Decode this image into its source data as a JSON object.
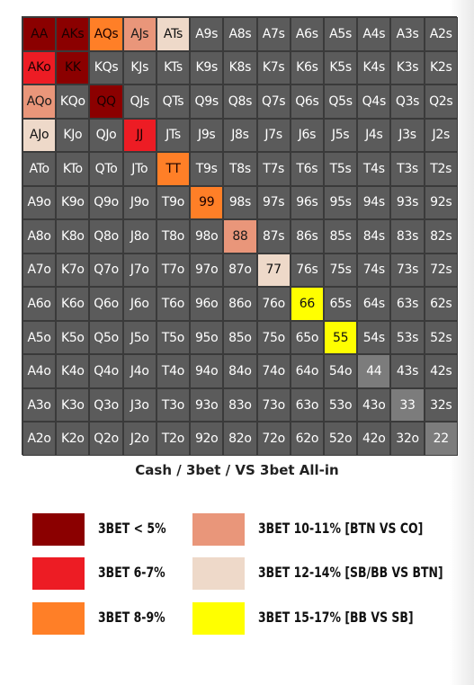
{
  "chart_data": {
    "type": "heatmap",
    "title": "Cash / 3bet / VS 3bet All-in",
    "grid": [
      [
        "AA",
        "AKs",
        "AQs",
        "AJs",
        "ATs",
        "A9s",
        "A8s",
        "A7s",
        "A6s",
        "A5s",
        "A4s",
        "A3s",
        "A2s"
      ],
      [
        "AKo",
        "KK",
        "KQs",
        "KJs",
        "KTs",
        "K9s",
        "K8s",
        "K7s",
        "K6s",
        "K5s",
        "K4s",
        "K3s",
        "K2s"
      ],
      [
        "AQo",
        "KQo",
        "QQ",
        "QJs",
        "QTs",
        "Q9s",
        "Q8s",
        "Q7s",
        "Q6s",
        "Q5s",
        "Q4s",
        "Q3s",
        "Q2s"
      ],
      [
        "AJo",
        "KJo",
        "QJo",
        "JJ",
        "JTs",
        "J9s",
        "J8s",
        "J7s",
        "J6s",
        "J5s",
        "J4s",
        "J3s",
        "J2s"
      ],
      [
        "ATo",
        "KTo",
        "QTo",
        "JTo",
        "TT",
        "T9s",
        "T8s",
        "T7s",
        "T6s",
        "T5s",
        "T4s",
        "T3s",
        "T2s"
      ],
      [
        "A9o",
        "K9o",
        "Q9o",
        "J9o",
        "T9o",
        "99",
        "98s",
        "97s",
        "96s",
        "95s",
        "94s",
        "93s",
        "92s"
      ],
      [
        "A8o",
        "K8o",
        "Q8o",
        "J8o",
        "T8o",
        "98o",
        "88",
        "87s",
        "86s",
        "85s",
        "84s",
        "83s",
        "82s"
      ],
      [
        "A7o",
        "K7o",
        "Q7o",
        "J7o",
        "T7o",
        "97o",
        "87o",
        "77",
        "76s",
        "75s",
        "74s",
        "73s",
        "72s"
      ],
      [
        "A6o",
        "K6o",
        "Q6o",
        "J6o",
        "T6o",
        "96o",
        "86o",
        "76o",
        "66",
        "65s",
        "64s",
        "63s",
        "62s"
      ],
      [
        "A5o",
        "K5o",
        "Q5o",
        "J5o",
        "T5o",
        "95o",
        "85o",
        "75o",
        "65o",
        "55",
        "54s",
        "53s",
        "52s"
      ],
      [
        "A4o",
        "K4o",
        "Q4o",
        "J4o",
        "T4o",
        "94o",
        "84o",
        "74o",
        "64o",
        "54o",
        "44",
        "43s",
        "42s"
      ],
      [
        "A3o",
        "K3o",
        "Q3o",
        "J3o",
        "T3o",
        "93o",
        "83o",
        "73o",
        "63o",
        "53o",
        "43o",
        "33",
        "32s"
      ],
      [
        "A2o",
        "K2o",
        "Q2o",
        "J2o",
        "T2o",
        "92o",
        "82o",
        "72o",
        "62o",
        "52o",
        "42o",
        "32o",
        "22"
      ]
    ],
    "highlights": {
      "AA": 0,
      "AKs": 0,
      "KK": 0,
      "QQ": 0,
      "AKo": 1,
      "JJ": 1,
      "AQs": 2,
      "TT": 2,
      "99": 2,
      "AJs": 3,
      "AQo": 3,
      "88": 3,
      "ATs": 4,
      "AJo": 4,
      "77": 4,
      "66": 5,
      "55": 5
    },
    "default_color": "#5b5b5b",
    "pair_default_color": "#7c7c7c",
    "legend": [
      {
        "label": "3BET < 5%",
        "color": "#8b0000"
      },
      {
        "label": "3BET 6-7%",
        "color": "#ed1c24"
      },
      {
        "label": "3BET 8-9%",
        "color": "#ff7f27"
      },
      {
        "label": "3BET 10-11% [BTN VS CO]",
        "color": "#e9967a"
      },
      {
        "label": "3BET 12-14% [SB/BB VS BTN]",
        "color": "#eed9c9"
      },
      {
        "label": "3BET 15-17% [BB VS SB]",
        "color": "#ffff00"
      }
    ]
  }
}
